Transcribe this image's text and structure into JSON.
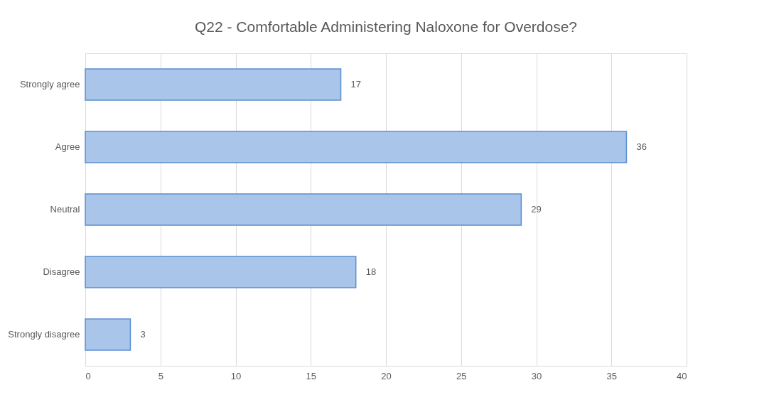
{
  "chart_data": {
    "type": "bar",
    "orientation": "horizontal",
    "title": "Q22 - Comfortable  Administering  Naloxone  for Overdose?",
    "categories": [
      "Strongly agree",
      "Agree",
      "Neutral",
      "Disagree",
      "Strongly disagree"
    ],
    "values": [
      17,
      36,
      29,
      18,
      3
    ],
    "color": "#a9c5ea",
    "xlim": [
      0,
      40
    ],
    "xticks": [
      0,
      5,
      10,
      15,
      20,
      25,
      30,
      35,
      40
    ],
    "grid": "x",
    "data_labels": true
  }
}
